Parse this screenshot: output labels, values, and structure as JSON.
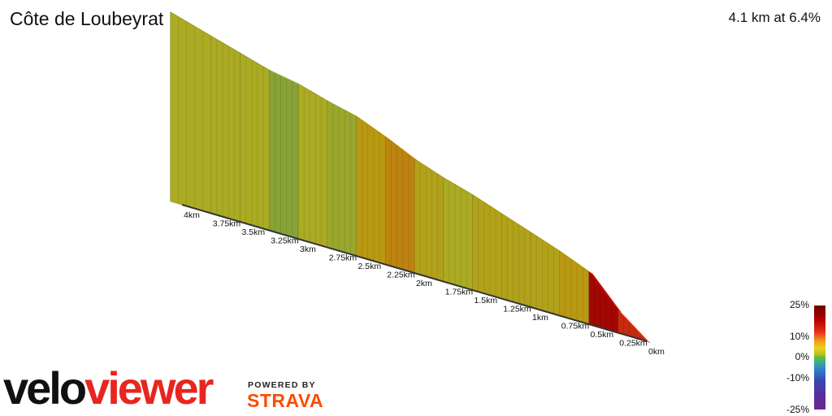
{
  "header": {
    "title": "Côte de Loubeyrat",
    "summary": "4.1 km at 6.4%"
  },
  "chart_data": {
    "type": "area",
    "title": "Côte de Loubeyrat",
    "x_unit": "km",
    "x_ticks": [
      "4km",
      "3.75km",
      "3.5km",
      "3.25km",
      "3km",
      "2.75km",
      "2.5km",
      "2.25km",
      "2km",
      "1.75km",
      "1.5km",
      "1.25km",
      "1km",
      "0.75km",
      "0.5km",
      "0.25km",
      "0km"
    ],
    "gradient_color_scale": {
      "labels": [
        "25%",
        "10%",
        "0%",
        "-10%",
        "-25%"
      ],
      "values": [
        25,
        10,
        0,
        -10,
        -25
      ]
    },
    "segments": [
      {
        "from_km": 0.0,
        "to_km": 0.25,
        "gradient_pct": 13
      },
      {
        "from_km": 0.25,
        "to_km": 0.5,
        "gradient_pct": 18
      },
      {
        "from_km": 0.5,
        "to_km": 0.75,
        "gradient_pct": 7
      },
      {
        "from_km": 0.75,
        "to_km": 1.0,
        "gradient_pct": 6
      },
      {
        "from_km": 1.0,
        "to_km": 1.25,
        "gradient_pct": 6
      },
      {
        "from_km": 1.25,
        "to_km": 1.5,
        "gradient_pct": 6
      },
      {
        "from_km": 1.5,
        "to_km": 1.75,
        "gradient_pct": 5
      },
      {
        "from_km": 1.75,
        "to_km": 2.0,
        "gradient_pct": 6
      },
      {
        "from_km": 2.0,
        "to_km": 2.25,
        "gradient_pct": 8
      },
      {
        "from_km": 2.25,
        "to_km": 2.5,
        "gradient_pct": 7
      },
      {
        "from_km": 2.5,
        "to_km": 2.75,
        "gradient_pct": 4
      },
      {
        "from_km": 2.75,
        "to_km": 3.0,
        "gradient_pct": 5
      },
      {
        "from_km": 3.0,
        "to_km": 3.25,
        "gradient_pct": 3
      },
      {
        "from_km": 3.25,
        "to_km": 3.5,
        "gradient_pct": 5
      },
      {
        "from_km": 3.5,
        "to_km": 3.75,
        "gradient_pct": 5
      },
      {
        "from_km": 3.75,
        "to_km": 4.1,
        "gradient_pct": 5
      }
    ]
  },
  "branding": {
    "logo_part1": "velo",
    "logo_part2": "viewer",
    "powered_by": "POWERED BY",
    "strava": "STRAVA",
    "strava_color": "#fc4c02"
  }
}
